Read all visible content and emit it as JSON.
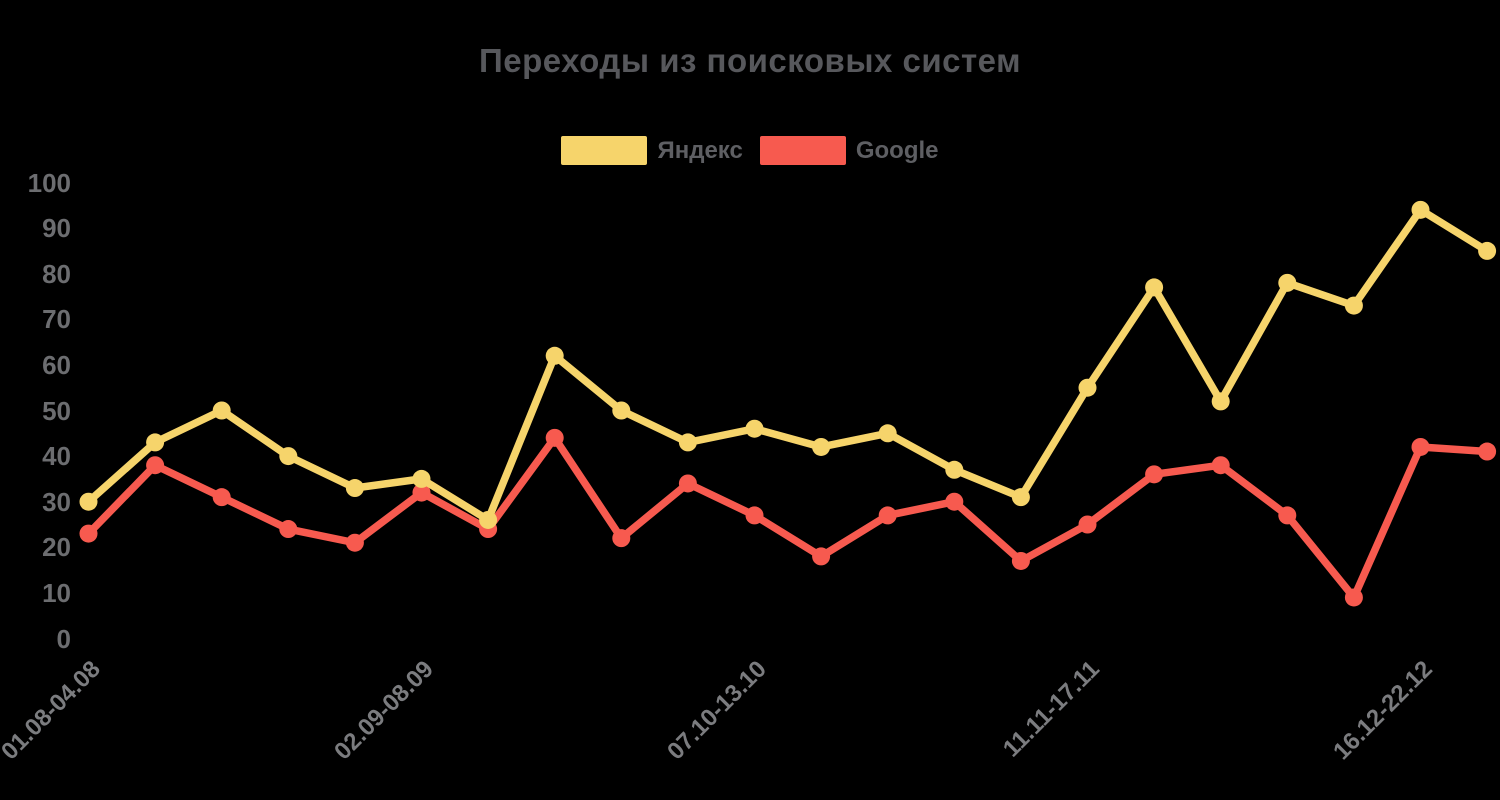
{
  "title": "Переходы из поисковых систем",
  "chart_data": {
    "type": "line",
    "title": "Переходы из поисковых систем",
    "legend_position": "top",
    "grid": false,
    "background": "#000000",
    "ylim": [
      0,
      100
    ],
    "yticks": [
      0,
      10,
      20,
      30,
      40,
      50,
      60,
      70,
      80,
      90,
      100
    ],
    "n_points": 22,
    "x_ticks": [
      {
        "index": 0,
        "label": "01.08-04.08"
      },
      {
        "index": 5,
        "label": "02.09-08.09"
      },
      {
        "index": 10,
        "label": "07.10-13.10"
      },
      {
        "index": 15,
        "label": "11.11-17.11"
      },
      {
        "index": 20,
        "label": "16.12-22.12"
      }
    ],
    "series": [
      {
        "name": "Яндекс",
        "color": "#F6D46B",
        "values": [
          30,
          43,
          50,
          40,
          33,
          35,
          26,
          62,
          50,
          43,
          46,
          42,
          45,
          37,
          31,
          55,
          77,
          52,
          78,
          73,
          94,
          85
        ]
      },
      {
        "name": "Google",
        "color": "#F75A4F",
        "values": [
          23,
          38,
          31,
          24,
          21,
          32,
          24,
          44,
          22,
          34,
          27,
          18,
          27,
          30,
          17,
          25,
          36,
          38,
          27,
          9,
          42,
          41
        ]
      }
    ]
  },
  "text_colors": {
    "title": "#57585C",
    "y_ticks": "#6C6D70",
    "x_ticks": "#7B7C7F",
    "legend": "#5E5F63"
  }
}
